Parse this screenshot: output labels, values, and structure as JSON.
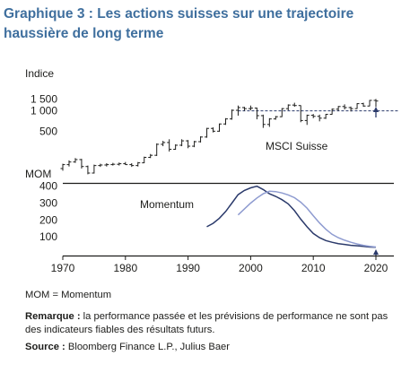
{
  "title": "Graphique 3 : Les actions suisses sur une trajectoire haussière de long terme",
  "abbreviation": "MOM = Momentum",
  "remark": {
    "label": "Remarque :",
    "text": "la performance passée et les prévisions de performance ne sont pas des indicateurs fiables des résultats futurs."
  },
  "source": {
    "label": "Source :",
    "text": "Bloomberg Finance L.P., Julius Baer"
  },
  "colors": {
    "title": "#3f6f9e",
    "msci": "#1d1d1b",
    "momentum_dark": "#2b3a6b",
    "momentum_light": "#8e9bd0",
    "reference_line": "#2b3a6b",
    "arrow": "#2b3a6b"
  },
  "chart_data": [
    {
      "type": "ohlc",
      "ylabel": "Indice",
      "series_label": "MSCI Suisse",
      "y_scale": "log",
      "ylim": [
        120,
        2000
      ],
      "y_ticks": [
        500,
        1000,
        1500
      ],
      "y_tick_labels": [
        "500",
        "1 000",
        "1 500"
      ],
      "reference_level": 1000,
      "arrow_marker": {
        "x": 2020,
        "label": ""
      },
      "series": [
        {
          "name": "MSCI Suisse",
          "points": [
            {
              "x": 1970,
              "o": 140,
              "h": 165,
              "l": 130,
              "c": 160
            },
            {
              "x": 1971,
              "o": 160,
              "h": 185,
              "l": 150,
              "c": 175
            },
            {
              "x": 1972,
              "o": 175,
              "h": 200,
              "l": 170,
              "c": 190
            },
            {
              "x": 1973,
              "o": 190,
              "h": 195,
              "l": 140,
              "c": 150
            },
            {
              "x": 1974,
              "o": 150,
              "h": 155,
              "l": 115,
              "c": 120
            },
            {
              "x": 1975,
              "o": 120,
              "h": 160,
              "l": 118,
              "c": 155
            },
            {
              "x": 1976,
              "o": 155,
              "h": 165,
              "l": 148,
              "c": 158
            },
            {
              "x": 1977,
              "o": 158,
              "h": 168,
              "l": 150,
              "c": 160
            },
            {
              "x": 1978,
              "o": 160,
              "h": 170,
              "l": 155,
              "c": 162
            },
            {
              "x": 1979,
              "o": 162,
              "h": 172,
              "l": 155,
              "c": 165
            },
            {
              "x": 1980,
              "o": 165,
              "h": 175,
              "l": 158,
              "c": 160
            },
            {
              "x": 1981,
              "o": 160,
              "h": 168,
              "l": 148,
              "c": 155
            },
            {
              "x": 1982,
              "o": 155,
              "h": 175,
              "l": 150,
              "c": 170
            },
            {
              "x": 1983,
              "o": 170,
              "h": 210,
              "l": 168,
              "c": 205
            },
            {
              "x": 1984,
              "o": 205,
              "h": 230,
              "l": 200,
              "c": 220
            },
            {
              "x": 1985,
              "o": 220,
              "h": 330,
              "l": 215,
              "c": 320
            },
            {
              "x": 1986,
              "o": 320,
              "h": 360,
              "l": 300,
              "c": 340
            },
            {
              "x": 1987,
              "o": 340,
              "h": 380,
              "l": 250,
              "c": 270
            },
            {
              "x": 1988,
              "o": 270,
              "h": 320,
              "l": 265,
              "c": 310
            },
            {
              "x": 1989,
              "o": 310,
              "h": 380,
              "l": 300,
              "c": 360
            },
            {
              "x": 1990,
              "o": 360,
              "h": 370,
              "l": 280,
              "c": 300
            },
            {
              "x": 1991,
              "o": 300,
              "h": 360,
              "l": 290,
              "c": 350
            },
            {
              "x": 1992,
              "o": 350,
              "h": 420,
              "l": 340,
              "c": 410
            },
            {
              "x": 1993,
              "o": 410,
              "h": 560,
              "l": 400,
              "c": 550
            },
            {
              "x": 1994,
              "o": 550,
              "h": 570,
              "l": 480,
              "c": 500
            },
            {
              "x": 1995,
              "o": 500,
              "h": 650,
              "l": 490,
              "c": 640
            },
            {
              "x": 1996,
              "o": 640,
              "h": 780,
              "l": 620,
              "c": 760
            },
            {
              "x": 1997,
              "o": 760,
              "h": 1050,
              "l": 740,
              "c": 1020
            },
            {
              "x": 1998,
              "o": 1020,
              "h": 1200,
              "l": 850,
              "c": 1120
            },
            {
              "x": 1999,
              "o": 1120,
              "h": 1150,
              "l": 1000,
              "c": 1080
            },
            {
              "x": 2000,
              "o": 1080,
              "h": 1200,
              "l": 1020,
              "c": 1100
            },
            {
              "x": 2001,
              "o": 1100,
              "h": 1120,
              "l": 750,
              "c": 850
            },
            {
              "x": 2002,
              "o": 850,
              "h": 880,
              "l": 560,
              "c": 630
            },
            {
              "x": 2003,
              "o": 630,
              "h": 780,
              "l": 580,
              "c": 760
            },
            {
              "x": 2004,
              "o": 760,
              "h": 840,
              "l": 740,
              "c": 820
            },
            {
              "x": 2005,
              "o": 820,
              "h": 1100,
              "l": 810,
              "c": 1080
            },
            {
              "x": 2006,
              "o": 1080,
              "h": 1250,
              "l": 1020,
              "c": 1220
            },
            {
              "x": 2007,
              "o": 1220,
              "h": 1320,
              "l": 1150,
              "c": 1200
            },
            {
              "x": 2008,
              "o": 1200,
              "h": 1210,
              "l": 680,
              "c": 720
            },
            {
              "x": 2009,
              "o": 720,
              "h": 880,
              "l": 620,
              "c": 860
            },
            {
              "x": 2010,
              "o": 860,
              "h": 900,
              "l": 780,
              "c": 830
            },
            {
              "x": 2011,
              "o": 830,
              "h": 880,
              "l": 700,
              "c": 780
            },
            {
              "x": 2012,
              "o": 780,
              "h": 900,
              "l": 760,
              "c": 890
            },
            {
              "x": 2013,
              "o": 890,
              "h": 1080,
              "l": 880,
              "c": 1060
            },
            {
              "x": 2014,
              "o": 1060,
              "h": 1180,
              "l": 1000,
              "c": 1160
            },
            {
              "x": 2015,
              "o": 1160,
              "h": 1250,
              "l": 1050,
              "c": 1120
            },
            {
              "x": 2016,
              "o": 1120,
              "h": 1160,
              "l": 980,
              "c": 1080
            },
            {
              "x": 2017,
              "o": 1080,
              "h": 1300,
              "l": 1070,
              "c": 1280
            },
            {
              "x": 2018,
              "o": 1280,
              "h": 1320,
              "l": 1150,
              "c": 1180
            },
            {
              "x": 2019,
              "o": 1180,
              "h": 1450,
              "l": 1170,
              "c": 1430
            },
            {
              "x": 2020,
              "o": 1430,
              "h": 1500,
              "l": 1150,
              "c": 1400
            }
          ]
        }
      ]
    },
    {
      "type": "line",
      "ylabel": "MOM",
      "annotation": "Momentum",
      "ylim": [
        0,
        430
      ],
      "y_ticks": [
        100,
        200,
        300,
        400
      ],
      "arrow_marker": {
        "x": 2020,
        "label": ""
      },
      "series": [
        {
          "name": "",
          "color": "#2b3a6b",
          "points": [
            [
              1993,
              160
            ],
            [
              1994,
              180
            ],
            [
              1995,
              210
            ],
            [
              1996,
              250
            ],
            [
              1997,
              300
            ],
            [
              1998,
              350
            ],
            [
              1999,
              375
            ],
            [
              2000,
              390
            ],
            [
              2001,
              400
            ],
            [
              2002,
              380
            ],
            [
              2003,
              355
            ],
            [
              2004,
              340
            ],
            [
              2005,
              320
            ],
            [
              2006,
              295
            ],
            [
              2007,
              255
            ],
            [
              2008,
              205
            ],
            [
              2009,
              160
            ],
            [
              2010,
              120
            ],
            [
              2011,
              95
            ],
            [
              2012,
              78
            ],
            [
              2013,
              68
            ],
            [
              2014,
              60
            ],
            [
              2015,
              55
            ],
            [
              2016,
              50
            ],
            [
              2017,
              47
            ],
            [
              2018,
              44
            ],
            [
              2019,
              40
            ],
            [
              2020,
              38
            ]
          ]
        },
        {
          "name": "",
          "color": "#8e9bd0",
          "points": [
            [
              1998,
              230
            ],
            [
              1999,
              265
            ],
            [
              2000,
              300
            ],
            [
              2001,
              330
            ],
            [
              2002,
              355
            ],
            [
              2003,
              370
            ],
            [
              2004,
              368
            ],
            [
              2005,
              360
            ],
            [
              2006,
              348
            ],
            [
              2007,
              332
            ],
            [
              2008,
              305
            ],
            [
              2009,
              270
            ],
            [
              2010,
              225
            ],
            [
              2011,
              182
            ],
            [
              2012,
              145
            ],
            [
              2013,
              115
            ],
            [
              2014,
              95
            ],
            [
              2015,
              80
            ],
            [
              2016,
              68
            ],
            [
              2017,
              58
            ],
            [
              2018,
              50
            ],
            [
              2019,
              44
            ],
            [
              2020,
              40
            ]
          ]
        }
      ]
    }
  ],
  "x_axis": {
    "ticks": [
      1970,
      1980,
      1990,
      2000,
      2010,
      2020
    ]
  }
}
